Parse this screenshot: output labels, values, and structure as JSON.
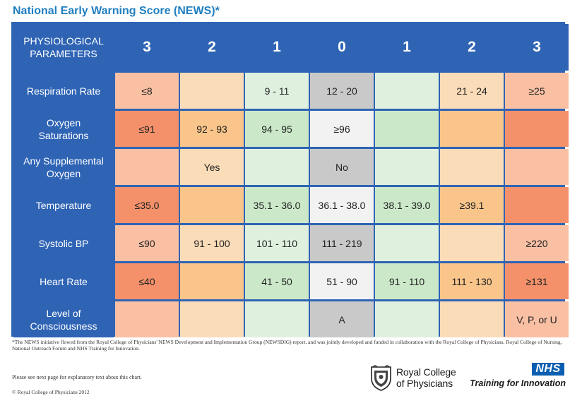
{
  "title": "National Early Warning Score (NEWS)*",
  "colors": {
    "header_blue": "#2f64b5",
    "score3": "#f4916a",
    "score3_light": "#f9c0a4",
    "score2": "#fadcb8",
    "score2_strong": "#f9c58a",
    "score1": "#dff1de",
    "score1_strong": "#cbe9c9",
    "score0": "#c9c9c9",
    "score0_light": "#f2f2f2"
  },
  "table": {
    "header": {
      "param_label": "PHYSIOLOGICAL\nPARAMETERS",
      "scores": [
        "3",
        "2",
        "1",
        "0",
        "1",
        "2",
        "3"
      ]
    },
    "rows": [
      {
        "label": "Respiration Rate",
        "cells": [
          "≤8",
          "",
          "9 - 11",
          "12 - 20",
          "",
          "21 - 24",
          "≥25"
        ],
        "colors": [
          "#f9c0a4",
          "#fadcb8",
          "#dff1de",
          "#c9c9c9",
          "#dff1de",
          "#fadcb8",
          "#f9c0a4"
        ]
      },
      {
        "label": "Oxygen\nSaturations",
        "cells": [
          "≤91",
          "92 - 93",
          "94 - 95",
          "≥96",
          "",
          "",
          ""
        ],
        "colors": [
          "#f4916a",
          "#f9c58a",
          "#cbe9c9",
          "#f2f2f2",
          "#cbe9c9",
          "#f9c58a",
          "#f4916a"
        ]
      },
      {
        "label": "Any Supplemental\nOxygen",
        "cells": [
          "",
          "Yes",
          "",
          "No",
          "",
          "",
          ""
        ],
        "colors": [
          "#f9c0a4",
          "#fadcb8",
          "#dff1de",
          "#c9c9c9",
          "#dff1de",
          "#fadcb8",
          "#f9c0a4"
        ]
      },
      {
        "label": "Temperature",
        "cells": [
          "≤35.0",
          "",
          "35.1 - 36.0",
          "36.1 - 38.0",
          "38.1 - 39.0",
          "≥39.1",
          ""
        ],
        "colors": [
          "#f4916a",
          "#f9c58a",
          "#cbe9c9",
          "#f2f2f2",
          "#cbe9c9",
          "#f9c58a",
          "#f4916a"
        ]
      },
      {
        "label": "Systolic BP",
        "cells": [
          "≤90",
          "91 - 100",
          "101 - 110",
          "111 - 219",
          "",
          "",
          "≥220"
        ],
        "colors": [
          "#f9c0a4",
          "#fadcb8",
          "#dff1de",
          "#c9c9c9",
          "#dff1de",
          "#fadcb8",
          "#f9c0a4"
        ]
      },
      {
        "label": "Heart Rate",
        "cells": [
          "≤40",
          "",
          "41 - 50",
          "51 - 90",
          "91 - 110",
          "111 - 130",
          "≥131"
        ],
        "colors": [
          "#f4916a",
          "#f9c58a",
          "#cbe9c9",
          "#f2f2f2",
          "#cbe9c9",
          "#f9c58a",
          "#f4916a"
        ]
      },
      {
        "label": "Level of\nConsciousness",
        "cells": [
          "",
          "",
          "",
          "A",
          "",
          "",
          "V, P, or U"
        ],
        "colors": [
          "#f9c0a4",
          "#fadcb8",
          "#dff1de",
          "#c9c9c9",
          "#dff1de",
          "#fadcb8",
          "#f9c0a4"
        ]
      }
    ]
  },
  "footnote": "*The NEWS initiative flowed from the Royal College of Physicians' NEWS Development and Implementation Group (NEWSDIG) report, and was jointly developed and funded in collaboration with the Royal College of Physicians, Royal College of Nursing, National Outreach Forum and NHS Training for Innovation.",
  "see_next": "Please see next page for explanatory text about this chart.",
  "copyright": "© Royal College of Physicians 2012",
  "rcp_logo": {
    "line1": "Royal College",
    "line2": "of Physicians",
    "icon": "rcp-crest-icon"
  },
  "nhs_logo": {
    "badge": "NHS",
    "tagline": "Training for Innovation"
  }
}
